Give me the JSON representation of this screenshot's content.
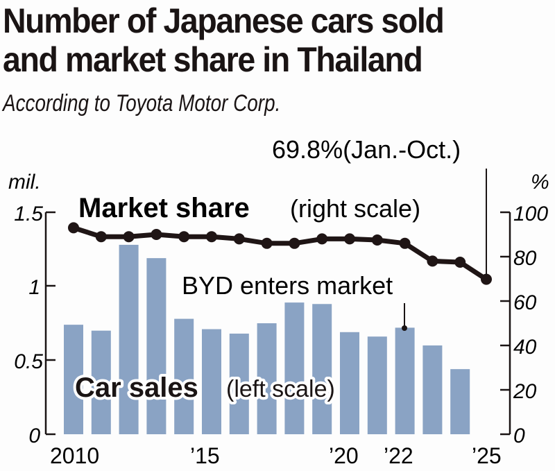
{
  "header": {
    "title_line1": "Number of Japanese cars sold",
    "title_line2": "and market share in Thailand",
    "subtitle": "According to Toyota Motor Corp."
  },
  "axes": {
    "left_unit": "mil.",
    "right_unit": "%",
    "left_ticks": [
      "0",
      "0.5",
      "1",
      "1.5"
    ],
    "right_ticks": [
      "0",
      "20",
      "40",
      "60",
      "80",
      "100"
    ],
    "x_labels": [
      "2010",
      "’15",
      "’20",
      "’22",
      "’25"
    ]
  },
  "annotations": {
    "market_share_bold": "Market share",
    "market_share_note": "(right scale)",
    "car_sales_bold": "Car sales",
    "car_sales_note": "(left scale)",
    "byd": "BYD enters market",
    "latest": "69.8%(Jan.-Oct.)"
  },
  "colors": {
    "bar": "#8aa3c4",
    "line": "#1f1515",
    "text": "#1a1414"
  },
  "chart_data": {
    "type": "bar+line",
    "title": "Number of Japanese cars sold and market share in Thailand",
    "subtitle": "According to Toyota Motor Corp.",
    "x": [
      2010,
      2011,
      2012,
      2013,
      2014,
      2015,
      2016,
      2017,
      2018,
      2019,
      2020,
      2021,
      2022,
      2023,
      2024,
      2025
    ],
    "x_tick_labels": [
      "2010",
      "’15",
      "’20",
      "’22",
      "’25"
    ],
    "series": [
      {
        "name": "Car sales (left scale)",
        "type": "bar",
        "axis": "left",
        "unit": "mil.",
        "x": [
          2010,
          2011,
          2012,
          2013,
          2014,
          2015,
          2016,
          2017,
          2018,
          2019,
          2020,
          2021,
          2022,
          2023,
          2024
        ],
        "values": [
          0.74,
          0.7,
          1.28,
          1.19,
          0.78,
          0.71,
          0.68,
          0.75,
          0.89,
          0.88,
          0.69,
          0.66,
          0.72,
          0.6,
          0.44
        ]
      },
      {
        "name": "Market share (right scale)",
        "type": "line",
        "axis": "right",
        "unit": "%",
        "x": [
          2010,
          2011,
          2012,
          2013,
          2014,
          2015,
          2016,
          2017,
          2018,
          2019,
          2020,
          2021,
          2022,
          2023,
          2024,
          2025
        ],
        "values": [
          93,
          89,
          89,
          90,
          89,
          89,
          88,
          86,
          86,
          88,
          88,
          87.5,
          86,
          78,
          77.5,
          69.8
        ]
      }
    ],
    "left_axis": {
      "label": "mil.",
      "ylim": [
        0,
        1.5
      ],
      "ticks": [
        0,
        0.5,
        1,
        1.5
      ]
    },
    "right_axis": {
      "label": "%",
      "ylim": [
        0,
        100
      ],
      "ticks": [
        0,
        20,
        40,
        60,
        80,
        100
      ]
    },
    "annotations": [
      {
        "text": "BYD enters market",
        "x": 2022
      },
      {
        "text": "69.8%(Jan.-Oct.)",
        "x": 2025
      }
    ],
    "grid": false,
    "legend": "inline labels"
  }
}
